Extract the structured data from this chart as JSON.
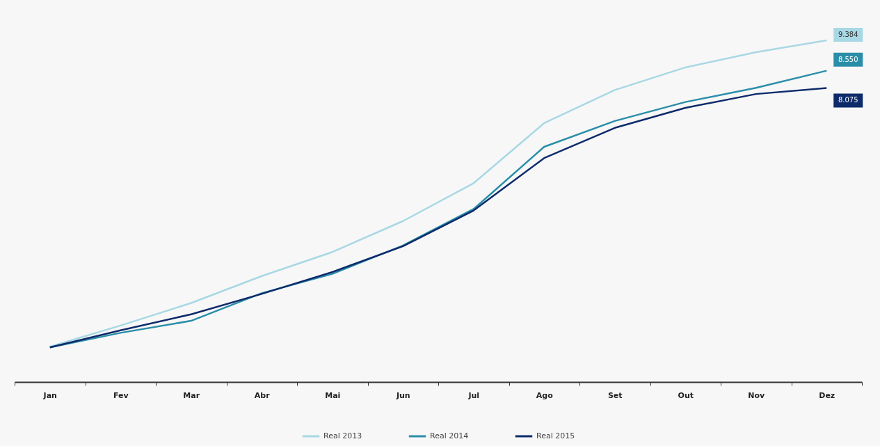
{
  "chart_data": {
    "type": "line",
    "categories": [
      "Jan",
      "Fev",
      "Mar",
      "Abr",
      "Mai",
      "Jun",
      "Jul",
      "Ago",
      "Set",
      "Out",
      "Nov",
      "Dez"
    ],
    "series": [
      {
        "name": "Real 2013",
        "color": "#a8d8e4",
        "values": [
          0.97,
          1.55,
          2.17,
          2.91,
          3.57,
          4.42,
          5.46,
          7.11,
          8.02,
          8.64,
          9.06,
          9.384
        ],
        "value_labels": [
          null,
          null,
          null,
          null,
          null,
          null,
          null,
          null,
          null,
          null,
          null,
          "9.384"
        ]
      },
      {
        "name": "Real 2014",
        "color": "#2a8ea8",
        "values": [
          0.95,
          1.35,
          1.68,
          2.44,
          2.97,
          3.75,
          4.75,
          6.46,
          7.17,
          7.69,
          8.08,
          8.55
        ],
        "value_labels": [
          null,
          null,
          null,
          null,
          null,
          null,
          null,
          null,
          null,
          null,
          null,
          "8.550"
        ]
      },
      {
        "name": "Real 2015",
        "color": "#0d2a6b",
        "values": [
          0.95,
          1.42,
          1.86,
          2.42,
          3.02,
          3.73,
          4.71,
          6.15,
          6.98,
          7.53,
          7.91,
          8.075
        ],
        "value_labels": [
          null,
          null,
          null,
          null,
          null,
          null,
          null,
          null,
          null,
          null,
          null,
          "8.075"
        ]
      }
    ],
    "legend": "bottom",
    "grid": false,
    "marker": "none",
    "line_style": "solid"
  }
}
